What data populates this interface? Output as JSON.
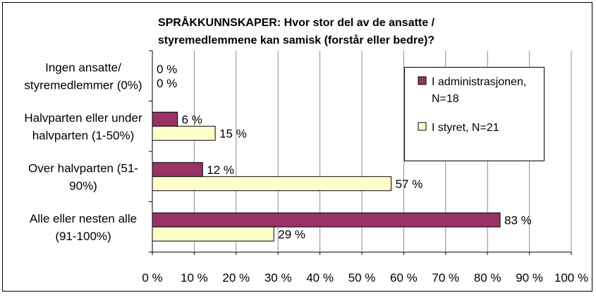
{
  "chart_data": {
    "type": "bar",
    "orientation": "horizontal",
    "title_lines": [
      "SPRÅKKUNNSKAPER:  Hvor stor del av de ansatte /",
      "styremedlemmene kan samisk (forstår eller bedre)?"
    ],
    "categories": [
      [
        "Ingen ansatte/",
        "styremedlemmer (0%)"
      ],
      [
        "Halvparten eller under",
        "halvparten (1-50%)"
      ],
      [
        "Over halvparten (51-",
        "90%)"
      ],
      [
        "Alle eller nesten alle",
        "(91-100%)"
      ]
    ],
    "series": [
      {
        "name_lines": [
          "I administrasjonen,",
          "N=18"
        ],
        "values": [
          0,
          6,
          12,
          83
        ],
        "value_labels": [
          "0 %",
          "6 %",
          "12 %",
          "83 %"
        ],
        "color": "#993366"
      },
      {
        "name_lines": [
          "I styret, N=21"
        ],
        "values": [
          0,
          15,
          57,
          29
        ],
        "value_labels": [
          "0 %",
          "15 %",
          "57 %",
          "29 %"
        ],
        "color": "#ffffcc"
      }
    ],
    "xlim": [
      0,
      100
    ],
    "xticks": [
      0,
      10,
      20,
      30,
      40,
      50,
      60,
      70,
      80,
      90,
      100
    ],
    "xtick_labels": [
      "0 %",
      "10 %",
      "20 %",
      "30 %",
      "40 %",
      "50 %",
      "60 %",
      "70 %",
      "80 %",
      "90 %",
      "100 %"
    ],
    "grid": true,
    "legend_position": "top-right"
  }
}
